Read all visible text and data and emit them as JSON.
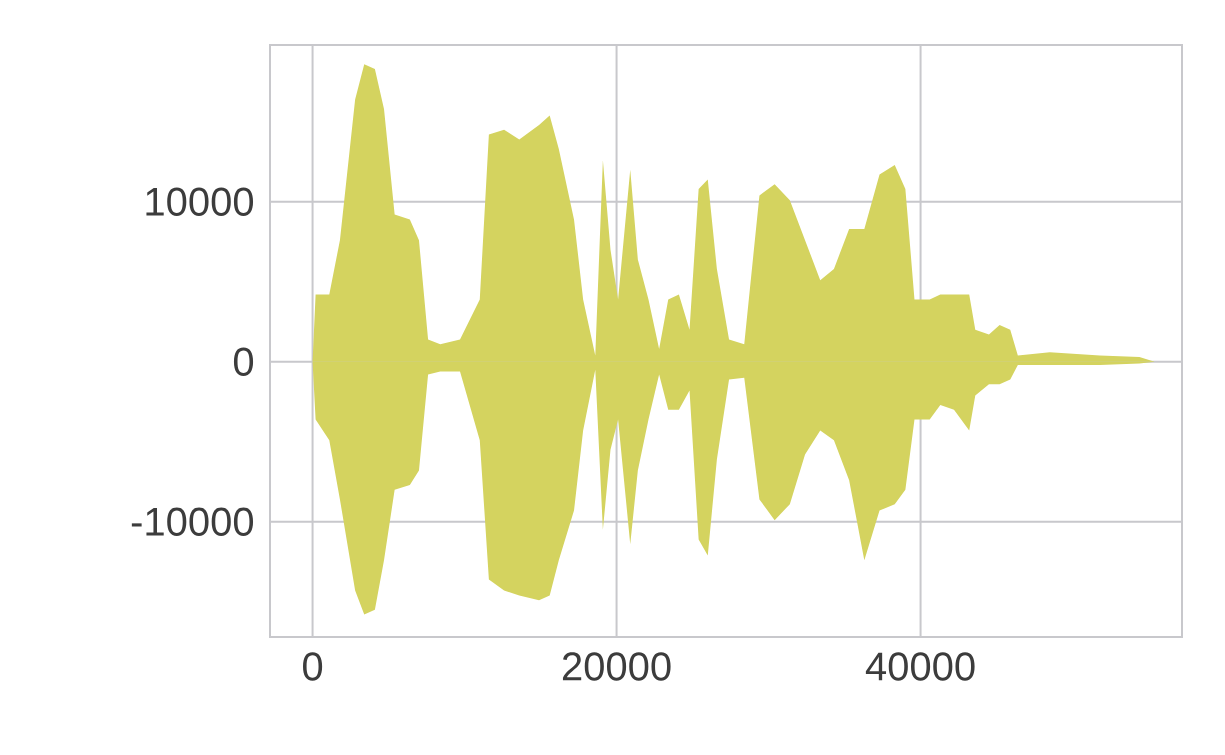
{
  "chart_data": {
    "type": "area",
    "x": [
      0,
      200,
      1100,
      1800,
      2800,
      3400,
      4100,
      4700,
      5400,
      6400,
      7000,
      7600,
      8400,
      9700,
      11000,
      11600,
      12600,
      13600,
      14900,
      15600,
      16200,
      17200,
      17800,
      18600,
      19100,
      19600,
      20100,
      20900,
      21400,
      22100,
      22800,
      23400,
      24100,
      24800,
      25400,
      26000,
      26600,
      27400,
      28400,
      29400,
      30400,
      31400,
      32400,
      33400,
      34300,
      35300,
      36300,
      37300,
      38300,
      39000,
      39600,
      40600,
      41300,
      42200,
      43200,
      43600,
      44500,
      45200,
      45900,
      46400,
      48500,
      51800,
      54400,
      55400
    ],
    "series": [
      {
        "color": "#d4d35f",
        "values": [
          0,
          4200,
          4200,
          7600,
          16400,
          18600,
          18300,
          15800,
          9200,
          8900,
          7600,
          1400,
          1100,
          1400,
          3900,
          14200,
          14500,
          13900,
          14800,
          15400,
          13300,
          8900,
          3900,
          400,
          12600,
          7000,
          3900,
          12000,
          6400,
          3900,
          800,
          3900,
          4200,
          2000,
          10800,
          11400,
          5800,
          1400,
          1100,
          10400,
          11100,
          10100,
          7600,
          5100,
          5800,
          8300,
          8300,
          11700,
          12300,
          10800,
          3900,
          3900,
          4200,
          4200,
          4200,
          2000,
          1700,
          2300,
          2000,
          400,
          600,
          400,
          300,
          0
        ]
      },
      {
        "color": "#d4d35f",
        "values": [
          0,
          -3600,
          -4900,
          -8600,
          -14300,
          -15800,
          -15500,
          -12400,
          -8000,
          -7700,
          -6800,
          -800,
          -600,
          -600,
          -4900,
          -13600,
          -14300,
          -14600,
          -14900,
          -14600,
          -12400,
          -9300,
          -4300,
          -500,
          -10500,
          -5500,
          -3600,
          -11400,
          -6800,
          -3600,
          -800,
          -3000,
          -3000,
          -1800,
          -11100,
          -12100,
          -6100,
          -1100,
          -1000,
          -8600,
          -9900,
          -8900,
          -5800,
          -4300,
          -4900,
          -7400,
          -12400,
          -9300,
          -8900,
          -8000,
          -3600,
          -3600,
          -2700,
          -3000,
          -4300,
          -2100,
          -1400,
          -1400,
          -1100,
          -200,
          -200,
          -200,
          -100,
          0
        ]
      }
    ],
    "xlim": [
      -2800,
      57200
    ],
    "ylim": [
      -17200,
      19800
    ],
    "xticks": [
      0,
      20000,
      40000
    ],
    "yticks": [
      -10000,
      0,
      10000
    ],
    "grid": true
  }
}
